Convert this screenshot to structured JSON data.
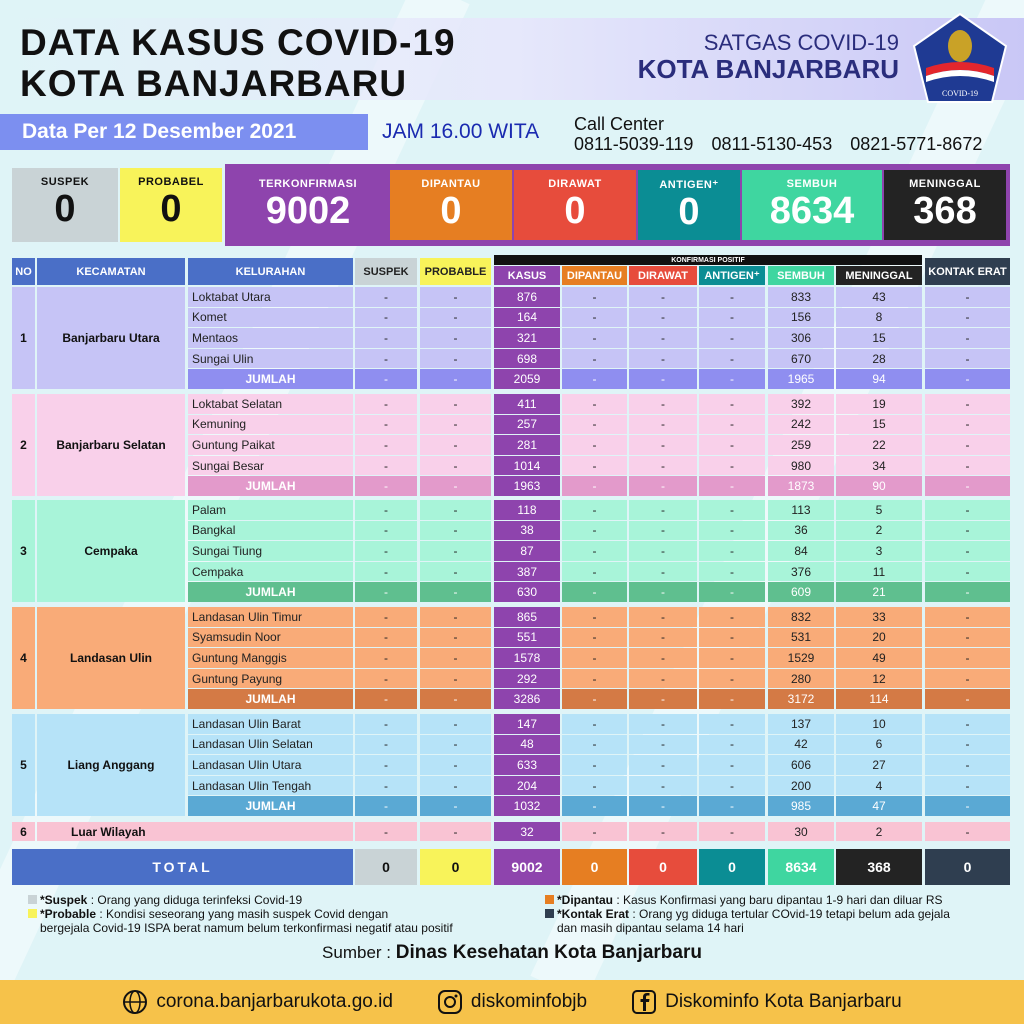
{
  "header": {
    "title_line1": "DATA KASUS COVID-19",
    "title_line2": "KOTA BANJARBARU",
    "org_line1": "SATGAS COVID-19",
    "org_line2": "KOTA BANJARBARU",
    "logo_text": "SATUAN TUGAS PENANGANAN COVID-19"
  },
  "date": {
    "label": "Data Per 12 Desember 2021",
    "time": "JAM 16.00 WITA"
  },
  "call_center": {
    "label": "Call Center",
    "numbers": [
      "0811-5039-119",
      "0811-5130-453",
      "0821-5771-8672"
    ]
  },
  "colors": {
    "suspek": "#c9d3d6",
    "probable": "#f8f35a",
    "kasus": "#8e44ad",
    "dipantau": "#e67e22",
    "dirawat": "#e74c3c",
    "antigen": "#0b8d94",
    "sembuh": "#3fd6a0",
    "meninggal": "#232323",
    "kontak": "#2f3e50",
    "header_blue": "#4a6fc7"
  },
  "stats": [
    {
      "label": "SUSPEK",
      "value": "0"
    },
    {
      "label": "PROBABEL",
      "value": "0"
    },
    {
      "label": "TERKONFIRMASI",
      "value": "9002"
    },
    {
      "label": "DIPANTAU",
      "value": "0"
    },
    {
      "label": "DIRAWAT",
      "value": "0"
    },
    {
      "label": "ANTIGEN⁺",
      "value": "0"
    },
    {
      "label": "SEMBUH",
      "value": "8634"
    },
    {
      "label": "MENINGGAL",
      "value": "368"
    }
  ],
  "table": {
    "super_header": "KONFIRMASI POSITIF",
    "columns": [
      "NO",
      "KECAMATAN",
      "KELURAHAN",
      "SUSPEK",
      "PROBABLE",
      "KASUS",
      "DIPANTAU",
      "DIRAWAT",
      "ANTIGEN⁺",
      "SEMBUH",
      "MENINGGAL",
      "KONTAK ERAT"
    ],
    "groups": [
      {
        "no": "1",
        "kecamatan": "Banjarbaru Utara",
        "bg": "#c6c4f6",
        "sum_bg": "#8f8ef0",
        "rows": [
          [
            "Loktabat Utara",
            "-",
            "-",
            "876",
            "-",
            "-",
            "-",
            "833",
            "43",
            "-"
          ],
          [
            "Komet",
            "-",
            "-",
            "164",
            "-",
            "-",
            "-",
            "156",
            "8",
            "-"
          ],
          [
            "Mentaos",
            "-",
            "-",
            "321",
            "-",
            "-",
            "-",
            "306",
            "15",
            "-"
          ],
          [
            "Sungai Ulin",
            "-",
            "-",
            "698",
            "-",
            "-",
            "-",
            "670",
            "28",
            "-"
          ],
          [
            "JUMLAH",
            "-",
            "-",
            "2059",
            "-",
            "-",
            "-",
            "1965",
            "94",
            "-"
          ]
        ]
      },
      {
        "no": "2",
        "kecamatan": "Banjarbaru Selatan",
        "bg": "#f9d0ea",
        "sum_bg": "#e39acb",
        "rows": [
          [
            "Loktabat Selatan",
            "-",
            "-",
            "411",
            "-",
            "-",
            "-",
            "392",
            "19",
            "-"
          ],
          [
            "Kemuning",
            "-",
            "-",
            "257",
            "-",
            "-",
            "-",
            "242",
            "15",
            "-"
          ],
          [
            "Guntung Paikat",
            "-",
            "-",
            "281",
            "-",
            "-",
            "-",
            "259",
            "22",
            "-"
          ],
          [
            "Sungai Besar",
            "-",
            "-",
            "1014",
            "-",
            "-",
            "-",
            "980",
            "34",
            "-"
          ],
          [
            "JUMLAH",
            "-",
            "-",
            "1963",
            "-",
            "-",
            "-",
            "1873",
            "90",
            "-"
          ]
        ]
      },
      {
        "no": "3",
        "kecamatan": "Cempaka",
        "bg": "#a8f4d9",
        "sum_bg": "#5fbf8f",
        "rows": [
          [
            "Palam",
            "-",
            "-",
            "118",
            "-",
            "-",
            "-",
            "113",
            "5",
            "-"
          ],
          [
            "Bangkal",
            "-",
            "-",
            "38",
            "-",
            "-",
            "-",
            "36",
            "2",
            "-"
          ],
          [
            "Sungai Tiung",
            "-",
            "-",
            "87",
            "-",
            "-",
            "-",
            "84",
            "3",
            "-"
          ],
          [
            "Cempaka",
            "-",
            "-",
            "387",
            "-",
            "-",
            "-",
            "376",
            "11",
            "-"
          ],
          [
            "JUMLAH",
            "-",
            "-",
            "630",
            "-",
            "-",
            "-",
            "609",
            "21",
            "-"
          ]
        ]
      },
      {
        "no": "4",
        "kecamatan": "Landasan Ulin",
        "bg": "#f9ab78",
        "sum_bg": "#d47a45",
        "rows": [
          [
            "Landasan Ulin Timur",
            "-",
            "-",
            "865",
            "-",
            "-",
            "-",
            "832",
            "33",
            "-"
          ],
          [
            "Syamsudin Noor",
            "-",
            "-",
            "551",
            "-",
            "-",
            "-",
            "531",
            "20",
            "-"
          ],
          [
            "Guntung Manggis",
            "-",
            "-",
            "1578",
            "-",
            "-",
            "-",
            "1529",
            "49",
            "-"
          ],
          [
            "Guntung Payung",
            "-",
            "-",
            "292",
            "-",
            "-",
            "-",
            "280",
            "12",
            "-"
          ],
          [
            "JUMLAH",
            "-",
            "-",
            "3286",
            "-",
            "-",
            "-",
            "3172",
            "114",
            "-"
          ]
        ]
      },
      {
        "no": "5",
        "kecamatan": "Liang Anggang",
        "bg": "#b6e3f8",
        "sum_bg": "#5aa9d4",
        "rows": [
          [
            "Landasan Ulin Barat",
            "-",
            "-",
            "147",
            "-",
            "-",
            "-",
            "137",
            "10",
            "-"
          ],
          [
            "Landasan Ulin Selatan",
            "-",
            "-",
            "48",
            "-",
            "-",
            "-",
            "42",
            "6",
            "-"
          ],
          [
            "Landasan Ulin Utara",
            "-",
            "-",
            "633",
            "-",
            "-",
            "-",
            "606",
            "27",
            "-"
          ],
          [
            "Landasan Ulin Tengah",
            "-",
            "-",
            "204",
            "-",
            "-",
            "-",
            "200",
            "4",
            "-"
          ],
          [
            "JUMLAH",
            "-",
            "-",
            "1032",
            "-",
            "-",
            "-",
            "985",
            "47",
            "-"
          ]
        ]
      }
    ],
    "luar": {
      "no": "6",
      "kecamatan": "Luar Wilayah",
      "bg": "#f9c3d3",
      "values": [
        "-",
        "-",
        "32",
        "-",
        "-",
        "-",
        "30",
        "2",
        "-"
      ]
    },
    "total": {
      "label": "TOTAL",
      "values": [
        "0",
        "0",
        "9002",
        "0",
        "0",
        "0",
        "8634",
        "368",
        "0"
      ]
    }
  },
  "legend": {
    "suspek_term": "*Suspek",
    "suspek_def": ": Orang yang diduga terinfeksi Covid-19",
    "probable_term": "*Probable",
    "probable_def": ": Kondisi seseorang yang masih suspek Covid dengan",
    "probable_def2": "bergejala Covid-19 ISPA berat namum belum terkonfirmasi negatif atau positif",
    "dipantau_term": "*Dipantau",
    "dipantau_def": ": Kasus Konfirmasi yang baru dipantau 1-9 hari dan diluar RS",
    "kontak_term": "*Kontak Erat",
    "kontak_def": ": Orang yg diduga tertular COvid-19 tetapi belum ada gejala",
    "kontak_def2": "dan masih dipantau selama 14 hari"
  },
  "source": {
    "label": "Sumber :",
    "value": "Dinas Kesehatan Kota Banjarbaru"
  },
  "footer": {
    "website": "corona.banjarbarukota.go.id",
    "instagram": "diskominfobjb",
    "facebook": "Diskominfo Kota Banjarbaru"
  }
}
